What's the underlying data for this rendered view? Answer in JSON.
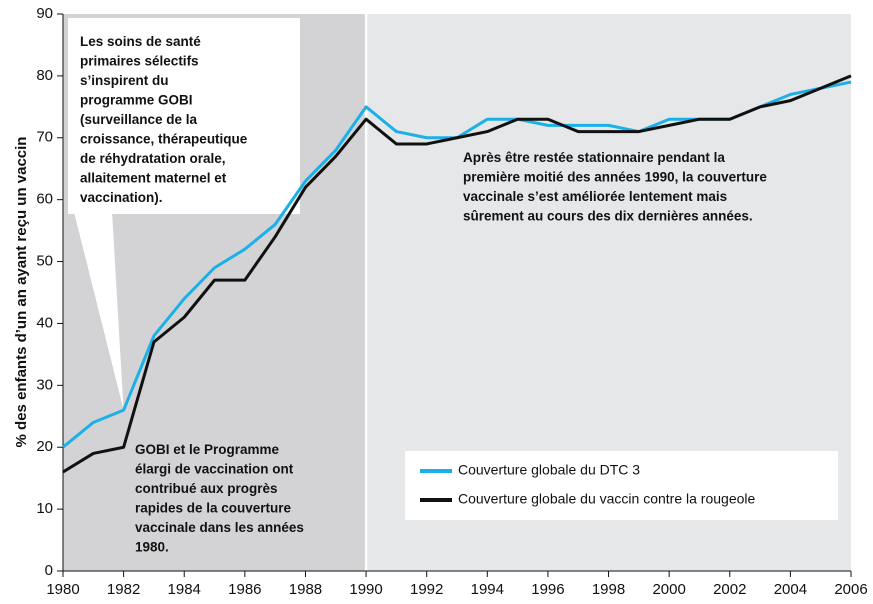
{
  "chart_data": {
    "type": "line",
    "y_label": "% des enfants d’un an ayant reçu un vaccin",
    "x": [
      1980,
      1981,
      1982,
      1983,
      1984,
      1985,
      1986,
      1987,
      1988,
      1989,
      1990,
      1991,
      1992,
      1993,
      1994,
      1995,
      1996,
      1997,
      1998,
      1999,
      2000,
      2001,
      2002,
      2003,
      2004,
      2005,
      2006
    ],
    "series": [
      {
        "name": "Couverture globale du DTC 3",
        "color": "#1cb0e8",
        "values": [
          20,
          24,
          26,
          38,
          44,
          49,
          52,
          56,
          63,
          68,
          75,
          71,
          70,
          70,
          73,
          73,
          72,
          72,
          72,
          71,
          73,
          73,
          73,
          75,
          77,
          78,
          79
        ]
      },
      {
        "name": "Couverture globale du vaccin contre la rougeole",
        "color": "#111111",
        "values": [
          16,
          19,
          20,
          37,
          41,
          47,
          47,
          54,
          62,
          67,
          73,
          69,
          69,
          70,
          71,
          73,
          73,
          71,
          71,
          71,
          72,
          73,
          73,
          75,
          76,
          78,
          80
        ]
      }
    ],
    "xlim": [
      1980,
      2006
    ],
    "xticks": [
      1980,
      1982,
      1984,
      1986,
      1988,
      1990,
      1992,
      1994,
      1996,
      1998,
      2000,
      2002,
      2004,
      2006
    ],
    "ylim": [
      0,
      90
    ],
    "yticks": [
      0,
      10,
      20,
      30,
      40,
      50,
      60,
      70,
      80,
      90
    ],
    "highlight_xlim": [
      1980,
      1990
    ],
    "annotations": [
      {
        "lines": [
          "Les soins de santé",
          "primaires sélectifs",
          "s’inspirent du",
          "programme GOBI",
          "(surveillance de la",
          "croissance, thérapeutique",
          "de réhydratation orale,",
          "allaitement maternel et",
          "vaccination)."
        ]
      },
      {
        "lines": [
          "GOBI et le Programme",
          "élargi de vaccination ont",
          "contribué aux progrès",
          "rapides de la couverture",
          "vaccinale dans les années",
          "1980."
        ]
      },
      {
        "lines": [
          "Après être restée stationnaire pendant la",
          "première moitié des années 1990, la couverture",
          "vaccinale s’est améliorée lentement mais",
          "sûrement au cours des dix dernières années."
        ]
      }
    ]
  }
}
